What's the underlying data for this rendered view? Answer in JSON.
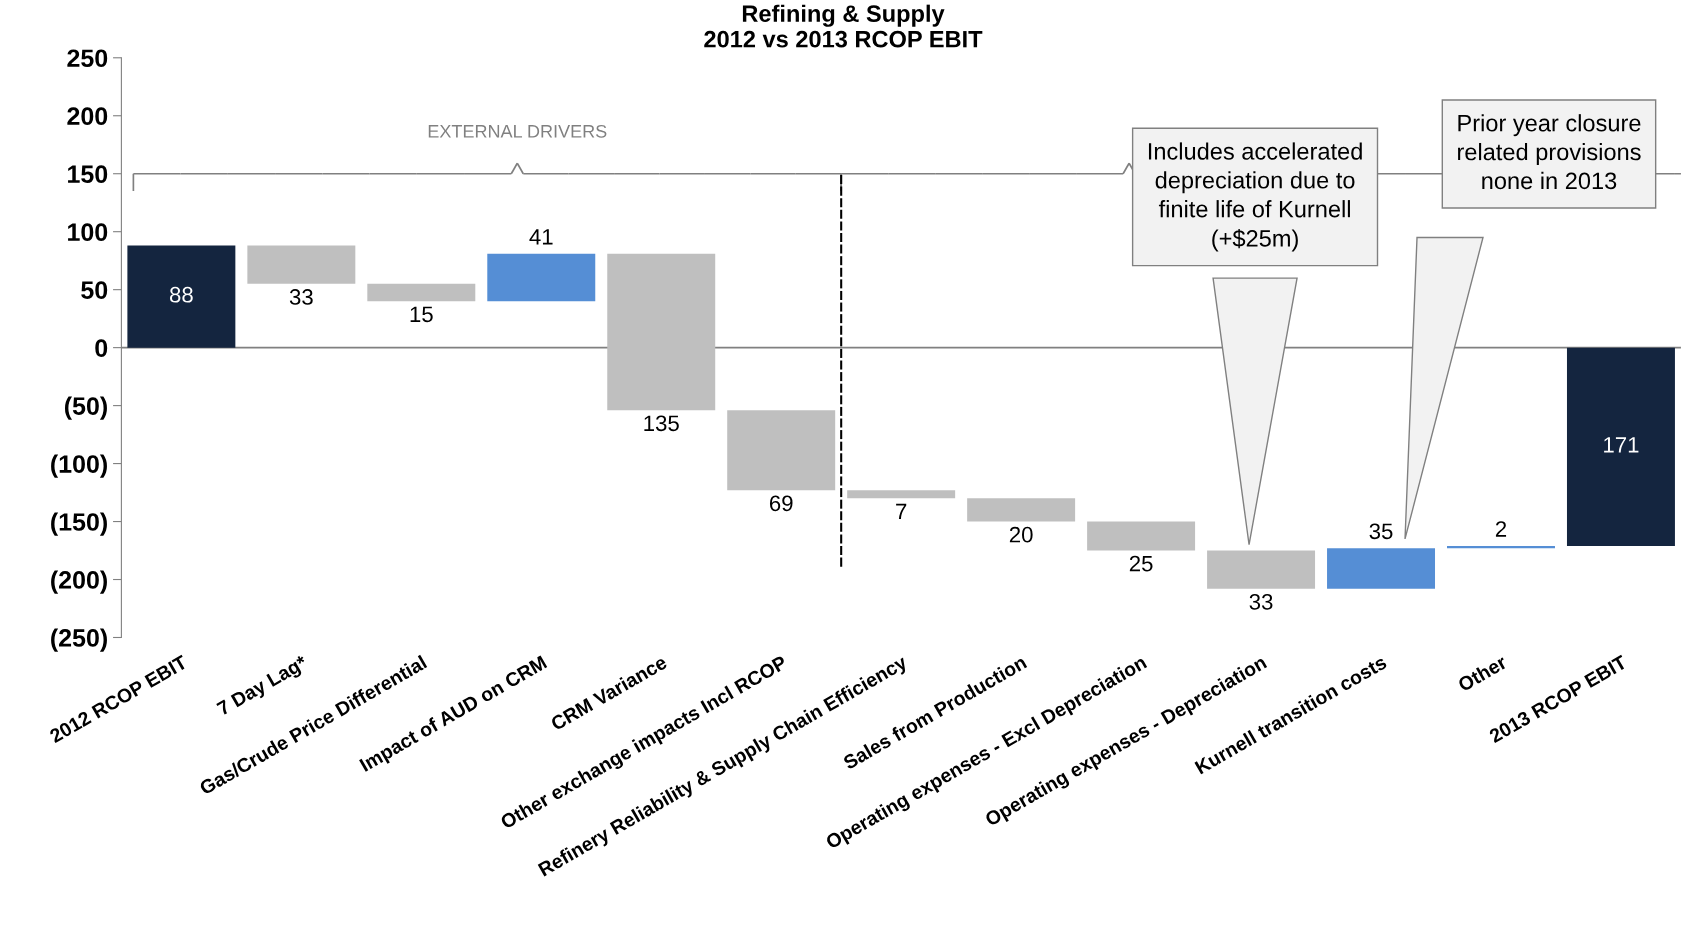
{
  "chart_data": {
    "type": "bar",
    "title": "Refining & Supply\n2012 vs 2013 RCOP EBIT",
    "categories": [
      "2012 RCOP EBIT",
      "7 Day Lag*",
      "Gas/Crude Price Differential",
      "Impact of AUD on CRM",
      "CRM Variance",
      "Other exchange impacts Incl RCOP",
      "Refinery Reliability & Supply Chain Efficiency",
      "Sales from Production",
      "Operating expenses - Excl Depreciation",
      "Operating expenses - Depreciation",
      "Kurnell transition costs",
      "Other",
      "2013 RCOP EBIT"
    ],
    "values": [
      88,
      -33,
      -15,
      41,
      -135,
      -69,
      -7,
      -20,
      -25,
      -33,
      35,
      2,
      -171
    ],
    "base": [
      0,
      88,
      55,
      40,
      81,
      -54,
      -123,
      -130,
      -150,
      -175,
      -208,
      -173,
      0
    ],
    "colors": [
      "#14253f",
      "#bfbfbf",
      "#bfbfbf",
      "#558ed5",
      "#bfbfbf",
      "#bfbfbf",
      "#bfbfbf",
      "#bfbfbf",
      "#bfbfbf",
      "#bfbfbf",
      "#558ed5",
      "#558ed5",
      "#14253f"
    ],
    "value_labels": [
      "88",
      "33",
      "15",
      "41",
      "135",
      "69",
      "7",
      "20",
      "25",
      "33",
      "35",
      "2",
      "171"
    ],
    "ylim": [
      -250,
      250
    ],
    "yticks": [
      {
        "value": 250,
        "label": "250"
      },
      {
        "value": 200,
        "label": "200"
      },
      {
        "value": 150,
        "label": "150"
      },
      {
        "value": 100,
        "label": "100"
      },
      {
        "value": 50,
        "label": "50"
      },
      {
        "value": 0,
        "label": "0"
      },
      {
        "value": -50,
        "label": "(50)"
      },
      {
        "value": -100,
        "label": "(100)"
      },
      {
        "value": -150,
        "label": "(150)"
      },
      {
        "value": -200,
        "label": "(200)"
      },
      {
        "value": -250,
        "label": "(250)"
      }
    ],
    "ref_lines": [
      {
        "axis": "y",
        "value": 0,
        "color": "#808080",
        "line_style": "solid"
      }
    ],
    "annotations": [
      "EXTERNAL DRIVERS",
      "Includes accelerated\ndepreciation due to\nfinite life of Kurnell\n(+$25m)",
      "Prior year closure\nrelated provisions\nnone in 2013"
    ],
    "grid": false,
    "legend": false
  }
}
